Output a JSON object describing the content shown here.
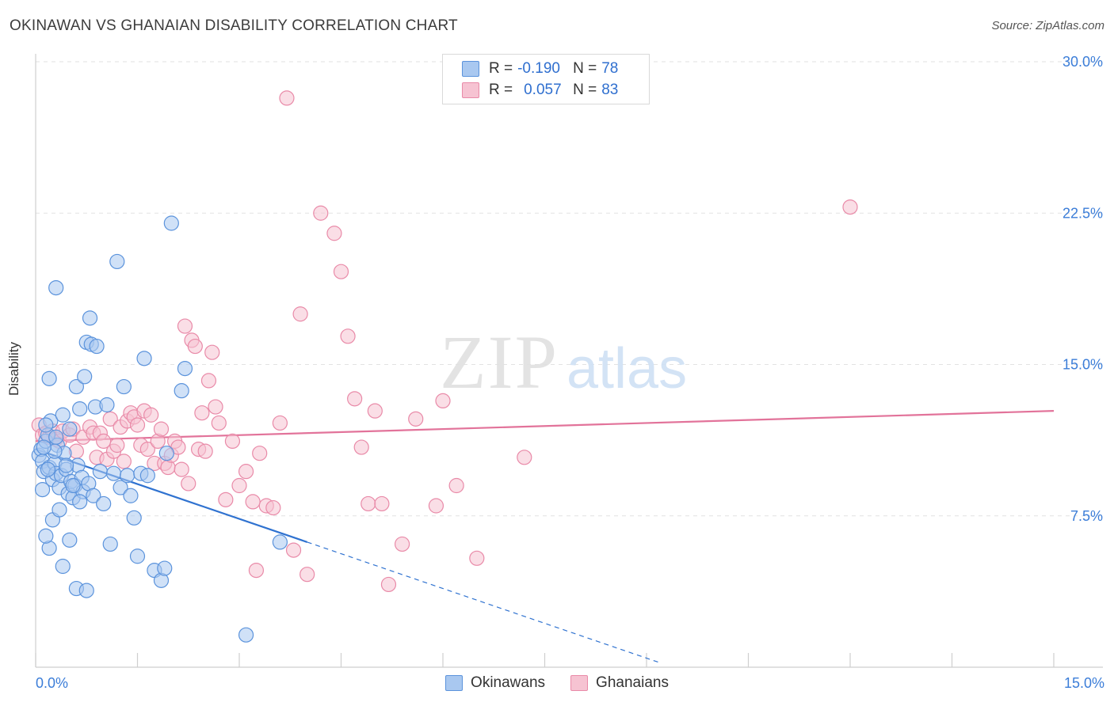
{
  "title": "OKINAWAN VS GHANAIAN DISABILITY CORRELATION CHART",
  "source": "Source: ZipAtlas.com",
  "legend": {
    "rows": [
      {
        "r_label": "R =",
        "r_value": "-0.190",
        "n_label": "N =",
        "n_value": "78"
      },
      {
        "r_label": "R =",
        "r_value": "0.057",
        "n_label": "N =",
        "n_value": "83"
      }
    ],
    "series_names": [
      "Okinawans",
      "Ghanaians"
    ]
  },
  "colors": {
    "okinawan_fill": "#a9c8f0",
    "okinawan_stroke": "#5b93dc",
    "okinawan_line": "#2f72d0",
    "ghanaian_fill": "#f6c3d2",
    "ghanaian_stroke": "#e98aa8",
    "ghanaian_line": "#e2739a",
    "tick_label": "#3b7dd8",
    "grid": "#e2e2e2"
  },
  "watermark": {
    "zip": "ZIP",
    "atlas": "atlas"
  },
  "chart_data": {
    "type": "scatter",
    "title": "OKINAWAN VS GHANAIAN DISABILITY CORRELATION CHART",
    "xlabel": "",
    "ylabel": "Disability",
    "xlim": [
      0,
      15
    ],
    "ylim": [
      0,
      31.0
    ],
    "x_tick_labels": [
      "0.0%",
      "15.0%"
    ],
    "y_ticks": [
      7.5,
      15.0,
      22.5,
      30.0
    ],
    "y_tick_labels": [
      "7.5%",
      "15.0%",
      "22.5%",
      "30.0%"
    ],
    "grid": true,
    "legend_position": "top-center",
    "series": [
      {
        "name": "Okinawans",
        "r": -0.19,
        "n": 78,
        "trend": {
          "x0": 0,
          "y0": 10.8,
          "x1": 4.0,
          "y1": 6.2,
          "dashed_to_x": 9.2
        },
        "points": [
          [
            0.05,
            10.5
          ],
          [
            0.08,
            10.8
          ],
          [
            0.1,
            10.2
          ],
          [
            0.12,
            9.7
          ],
          [
            0.15,
            11.2
          ],
          [
            0.18,
            11.5
          ],
          [
            0.2,
            9.9
          ],
          [
            0.22,
            12.2
          ],
          [
            0.25,
            9.3
          ],
          [
            0.28,
            10.1
          ],
          [
            0.3,
            9.6
          ],
          [
            0.32,
            11.0
          ],
          [
            0.35,
            8.9
          ],
          [
            0.38,
            9.5
          ],
          [
            0.4,
            12.5
          ],
          [
            0.42,
            10.6
          ],
          [
            0.45,
            9.8
          ],
          [
            0.48,
            8.6
          ],
          [
            0.5,
            11.8
          ],
          [
            0.52,
            9.2
          ],
          [
            0.55,
            8.4
          ],
          [
            0.58,
            9.0
          ],
          [
            0.6,
            13.9
          ],
          [
            0.62,
            10.0
          ],
          [
            0.65,
            12.8
          ],
          [
            0.68,
            9.4
          ],
          [
            0.7,
            8.7
          ],
          [
            0.72,
            14.4
          ],
          [
            0.75,
            16.1
          ],
          [
            0.78,
            9.1
          ],
          [
            0.8,
            17.3
          ],
          [
            0.82,
            16.0
          ],
          [
            0.85,
            8.5
          ],
          [
            0.88,
            12.9
          ],
          [
            0.9,
            15.9
          ],
          [
            0.95,
            9.7
          ],
          [
            1.0,
            8.1
          ],
          [
            1.05,
            13.0
          ],
          [
            1.1,
            6.1
          ],
          [
            1.15,
            9.6
          ],
          [
            1.2,
            20.1
          ],
          [
            1.25,
            8.9
          ],
          [
            1.3,
            13.9
          ],
          [
            1.35,
            9.5
          ],
          [
            1.4,
            8.5
          ],
          [
            1.45,
            7.4
          ],
          [
            1.5,
            5.5
          ],
          [
            1.55,
            9.6
          ],
          [
            1.6,
            15.3
          ],
          [
            1.65,
            9.5
          ],
          [
            1.75,
            4.8
          ],
          [
            1.85,
            4.3
          ],
          [
            1.9,
            4.9
          ],
          [
            1.93,
            10.6
          ],
          [
            2.0,
            22.0
          ],
          [
            2.15,
            13.7
          ],
          [
            2.2,
            14.8
          ],
          [
            0.3,
            18.8
          ],
          [
            0.2,
            14.3
          ],
          [
            0.15,
            12.0
          ],
          [
            0.1,
            8.8
          ],
          [
            0.25,
            7.3
          ],
          [
            0.35,
            7.8
          ],
          [
            0.2,
            5.9
          ],
          [
            0.15,
            6.5
          ],
          [
            0.4,
            5.0
          ],
          [
            0.6,
            3.9
          ],
          [
            0.75,
            3.8
          ],
          [
            0.5,
            6.3
          ],
          [
            0.3,
            11.4
          ],
          [
            0.45,
            10.0
          ],
          [
            0.55,
            9.0
          ],
          [
            0.65,
            8.2
          ],
          [
            0.18,
            9.8
          ],
          [
            0.28,
            10.7
          ],
          [
            3.6,
            6.2
          ],
          [
            3.1,
            1.6
          ],
          [
            0.12,
            10.9
          ]
        ]
      },
      {
        "name": "Ghanaians",
        "r": 0.057,
        "n": 83,
        "trend": {
          "x0": 0,
          "y0": 11.2,
          "x1": 15.0,
          "y1": 12.7
        },
        "points": [
          [
            0.05,
            12.0
          ],
          [
            0.1,
            11.5
          ],
          [
            0.15,
            11.6
          ],
          [
            0.2,
            11.4
          ],
          [
            0.25,
            11.7
          ],
          [
            0.3,
            11.3
          ],
          [
            0.35,
            11.2
          ],
          [
            0.4,
            11.7
          ],
          [
            0.5,
            11.5
          ],
          [
            0.55,
            11.8
          ],
          [
            0.6,
            10.7
          ],
          [
            0.7,
            11.4
          ],
          [
            0.8,
            11.9
          ],
          [
            0.85,
            11.6
          ],
          [
            0.9,
            10.4
          ],
          [
            0.95,
            11.6
          ],
          [
            1.0,
            11.2
          ],
          [
            1.05,
            10.3
          ],
          [
            1.1,
            12.3
          ],
          [
            1.15,
            10.7
          ],
          [
            1.2,
            11.0
          ],
          [
            1.25,
            11.9
          ],
          [
            1.3,
            10.2
          ],
          [
            1.35,
            12.2
          ],
          [
            1.4,
            12.6
          ],
          [
            1.45,
            12.4
          ],
          [
            1.5,
            12.0
          ],
          [
            1.55,
            11.0
          ],
          [
            1.6,
            12.7
          ],
          [
            1.65,
            10.8
          ],
          [
            1.7,
            12.5
          ],
          [
            1.75,
            10.1
          ],
          [
            1.8,
            11.2
          ],
          [
            1.85,
            11.8
          ],
          [
            1.9,
            10.1
          ],
          [
            1.95,
            9.9
          ],
          [
            2.0,
            10.5
          ],
          [
            2.05,
            11.2
          ],
          [
            2.1,
            10.9
          ],
          [
            2.15,
            9.8
          ],
          [
            2.2,
            16.9
          ],
          [
            2.25,
            9.1
          ],
          [
            2.3,
            16.2
          ],
          [
            2.35,
            15.9
          ],
          [
            2.4,
            10.8
          ],
          [
            2.45,
            12.6
          ],
          [
            2.5,
            10.7
          ],
          [
            2.55,
            14.2
          ],
          [
            2.6,
            15.6
          ],
          [
            2.65,
            12.9
          ],
          [
            2.7,
            12.1
          ],
          [
            2.8,
            8.3
          ],
          [
            2.9,
            11.2
          ],
          [
            3.0,
            9.0
          ],
          [
            3.1,
            9.7
          ],
          [
            3.2,
            8.2
          ],
          [
            3.3,
            10.6
          ],
          [
            3.4,
            8.0
          ],
          [
            3.5,
            7.9
          ],
          [
            3.6,
            12.1
          ],
          [
            3.7,
            28.2
          ],
          [
            3.8,
            5.8
          ],
          [
            3.9,
            17.5
          ],
          [
            4.0,
            4.6
          ],
          [
            4.2,
            22.5
          ],
          [
            4.4,
            21.5
          ],
          [
            4.5,
            19.6
          ],
          [
            4.6,
            16.4
          ],
          [
            4.7,
            13.3
          ],
          [
            4.8,
            10.9
          ],
          [
            4.9,
            8.1
          ],
          [
            5.0,
            12.7
          ],
          [
            5.1,
            8.1
          ],
          [
            5.2,
            4.1
          ],
          [
            5.4,
            6.1
          ],
          [
            5.6,
            12.3
          ],
          [
            5.9,
            8.0
          ],
          [
            6.0,
            13.2
          ],
          [
            6.2,
            9.0
          ],
          [
            6.5,
            5.4
          ],
          [
            7.2,
            10.4
          ],
          [
            12.0,
            22.8
          ],
          [
            3.25,
            4.8
          ]
        ]
      }
    ]
  }
}
